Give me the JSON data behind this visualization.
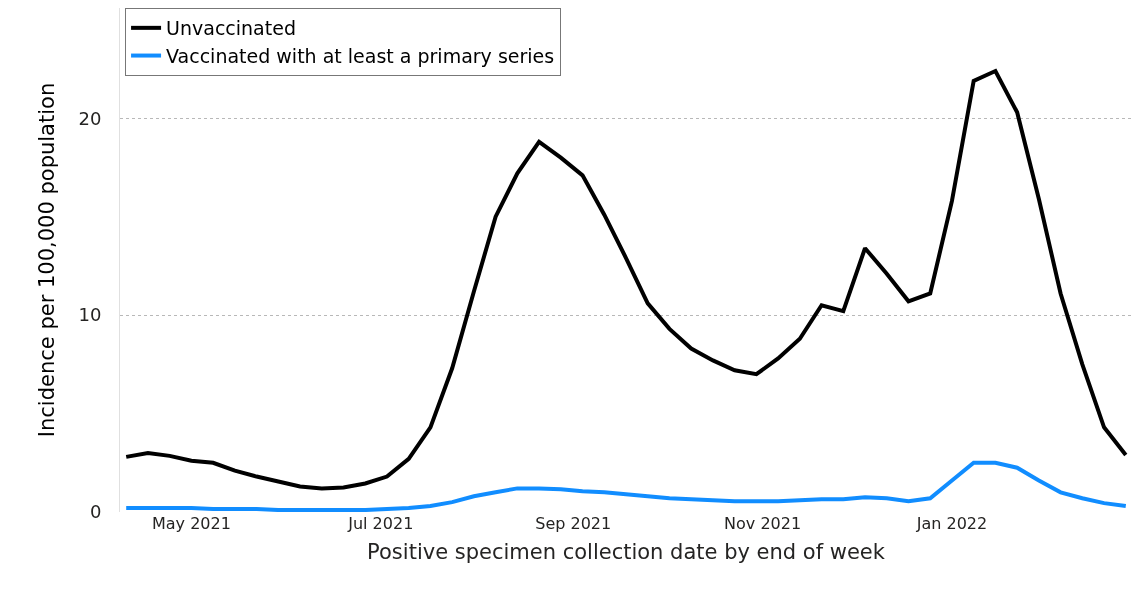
{
  "chart_data": {
    "type": "line",
    "xlabel": "Positive specimen collection date by end of week",
    "ylabel": "Incidence per 100,000 population",
    "x": [
      "2021-04-10",
      "2021-04-17",
      "2021-04-24",
      "2021-05-01",
      "2021-05-08",
      "2021-05-15",
      "2021-05-22",
      "2021-05-29",
      "2021-06-05",
      "2021-06-12",
      "2021-06-19",
      "2021-06-26",
      "2021-07-03",
      "2021-07-10",
      "2021-07-17",
      "2021-07-24",
      "2021-07-31",
      "2021-08-07",
      "2021-08-14",
      "2021-08-21",
      "2021-08-28",
      "2021-09-04",
      "2021-09-11",
      "2021-09-18",
      "2021-09-25",
      "2021-10-02",
      "2021-10-09",
      "2021-10-16",
      "2021-10-23",
      "2021-10-30",
      "2021-11-06",
      "2021-11-13",
      "2021-11-20",
      "2021-11-27",
      "2021-12-04",
      "2021-12-11",
      "2021-12-18",
      "2021-12-25",
      "2022-01-01",
      "2022-01-08",
      "2022-01-15",
      "2022-01-22",
      "2022-01-29",
      "2022-02-05",
      "2022-02-12",
      "2022-02-19",
      "2022-02-26"
    ],
    "series": [
      {
        "name": "Unvaccinated",
        "color": "#000000",
        "values": [
          2.8,
          3.0,
          2.85,
          2.6,
          2.5,
          2.1,
          1.8,
          1.55,
          1.3,
          1.2,
          1.25,
          1.45,
          1.8,
          2.7,
          4.3,
          7.3,
          11.2,
          15.0,
          17.2,
          18.8,
          18.0,
          17.1,
          15.1,
          12.9,
          10.6,
          9.3,
          8.3,
          7.7,
          7.2,
          7.0,
          7.8,
          8.8,
          10.5,
          10.2,
          13.4,
          12.1,
          10.7,
          11.1,
          15.8,
          21.9,
          22.4,
          20.3,
          15.9,
          11.1,
          7.5,
          4.3,
          2.9
        ]
      },
      {
        "name": "Vaccinated with at least a primary series",
        "color": "#118dff",
        "values": [
          0.2,
          0.2,
          0.2,
          0.2,
          0.15,
          0.15,
          0.15,
          0.1,
          0.1,
          0.1,
          0.1,
          0.1,
          0.15,
          0.2,
          0.3,
          0.5,
          0.8,
          1.0,
          1.2,
          1.2,
          1.15,
          1.05,
          1.0,
          0.9,
          0.8,
          0.7,
          0.65,
          0.6,
          0.55,
          0.55,
          0.55,
          0.6,
          0.65,
          0.65,
          0.75,
          0.7,
          0.55,
          0.7,
          1.6,
          2.5,
          2.5,
          2.25,
          1.6,
          1.0,
          0.7,
          0.45,
          0.3
        ]
      }
    ],
    "xlim": [
      "2021-04-08",
      "2022-02-28"
    ],
    "xticks": [
      {
        "value": "2021-05-01",
        "label": "May 2021"
      },
      {
        "value": "2021-07-01",
        "label": "Jul 2021"
      },
      {
        "value": "2021-09-01",
        "label": "Sep 2021"
      },
      {
        "value": "2021-11-01",
        "label": "Nov 2021"
      },
      {
        "value": "2022-01-01",
        "label": "Jan 2022"
      }
    ],
    "ylim": [
      0,
      25.6
    ],
    "yticks": [
      0,
      10,
      20
    ],
    "grid": "y",
    "legend": "top left",
    "marker": "none",
    "line_style": "solid"
  }
}
